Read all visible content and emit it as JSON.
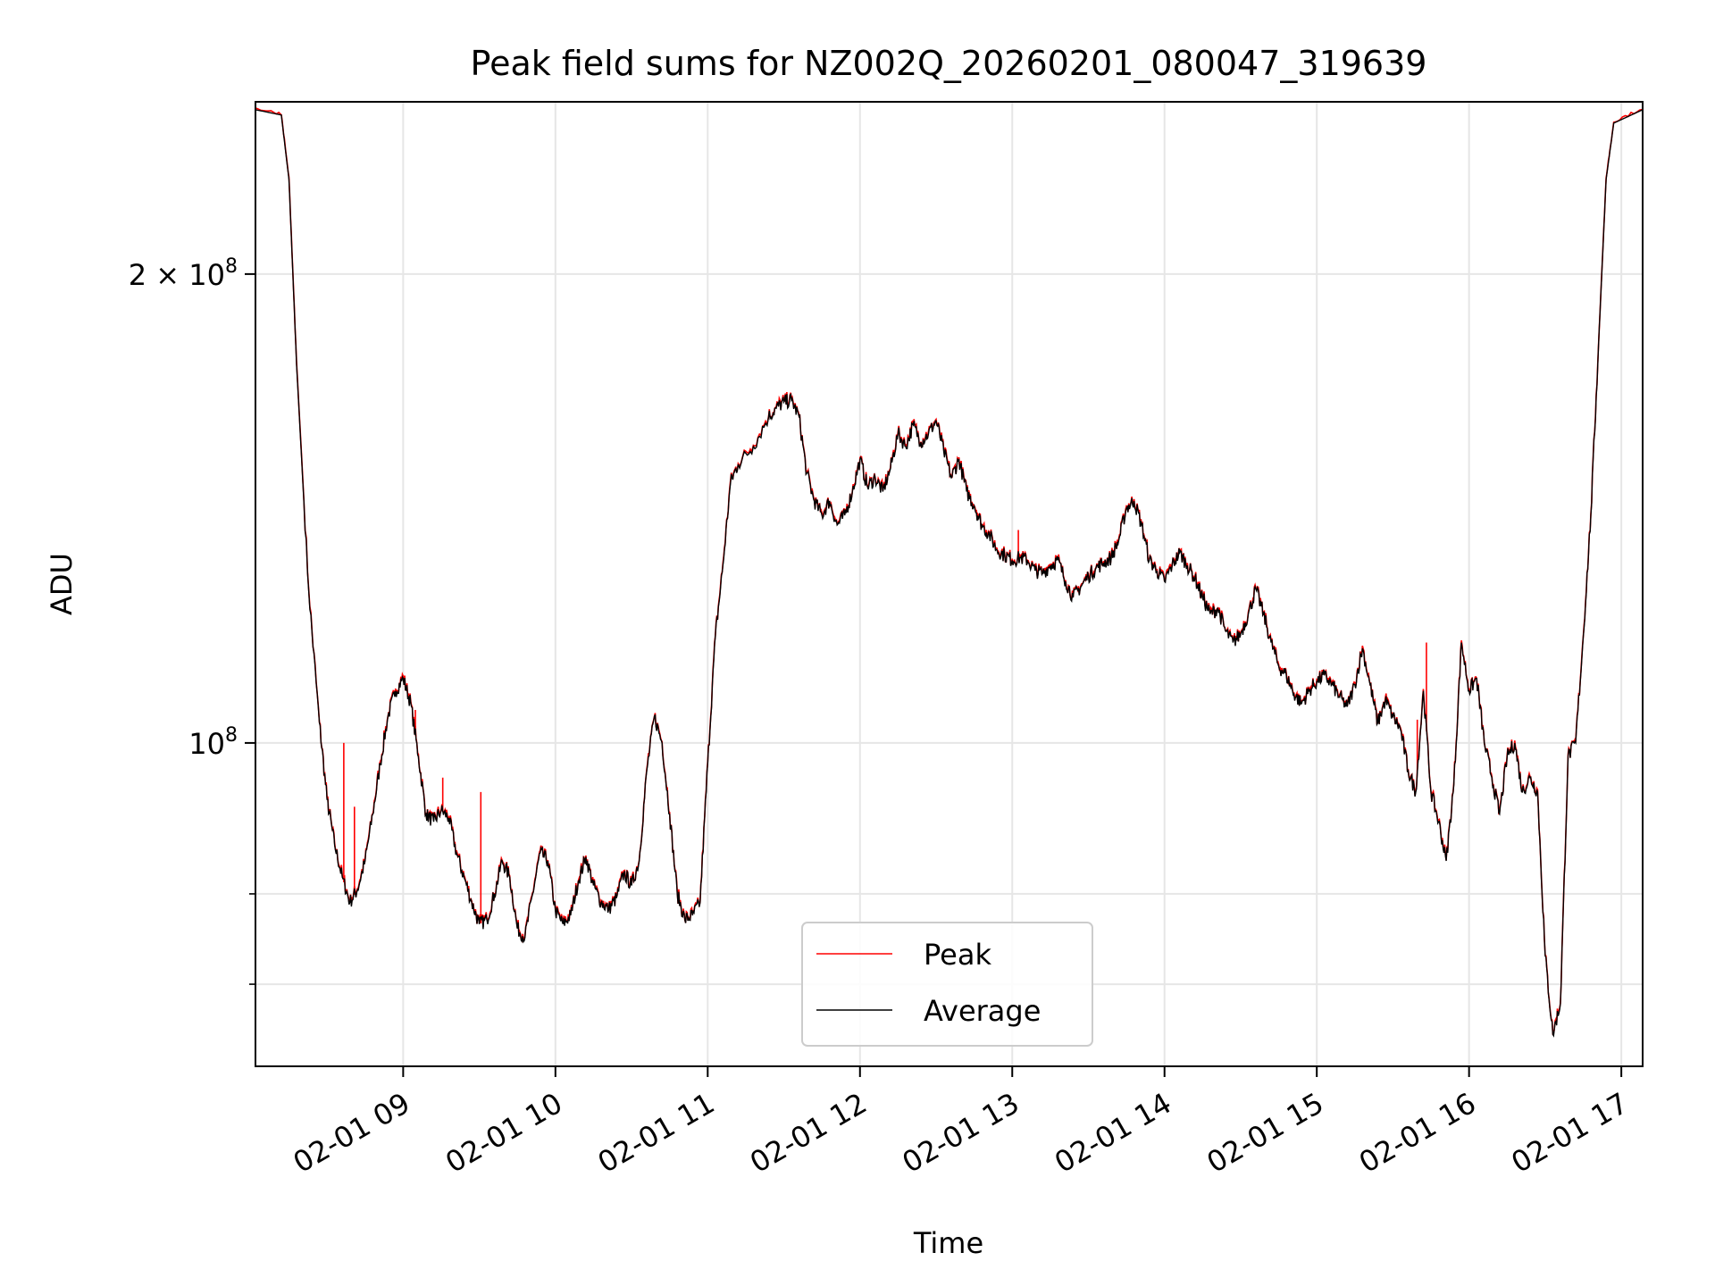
{
  "chart_data": {
    "type": "line",
    "title": "Peak field sums for NZ002Q_20260201_080047_319639",
    "xlabel": "Time",
    "ylabel": "ADU",
    "yscale": "log",
    "ylim": [
      62000000,
      258000000
    ],
    "xlim_hours": [
      8.03,
      17.14
    ],
    "grid": true,
    "x_ticks": [
      {
        "hour": 9,
        "label": "02-01 09"
      },
      {
        "hour": 10,
        "label": "02-01 10"
      },
      {
        "hour": 11,
        "label": "02-01 11"
      },
      {
        "hour": 12,
        "label": "02-01 12"
      },
      {
        "hour": 13,
        "label": "02-01 13"
      },
      {
        "hour": 14,
        "label": "02-01 14"
      },
      {
        "hour": 15,
        "label": "02-01 15"
      },
      {
        "hour": 16,
        "label": "02-01 16"
      },
      {
        "hour": 17,
        "label": "02-01 17"
      }
    ],
    "y_major_ticks": [
      {
        "value": 100000000,
        "mant": "10",
        "exp": "8"
      },
      {
        "value": 200000000,
        "mant": "2 × 10",
        "exp": "8"
      }
    ],
    "y_minor_ticks": [
      70000000,
      80000000,
      300000000
    ],
    "legend": {
      "position": "lower-center",
      "entries": [
        "Peak",
        "Average"
      ]
    },
    "colors": {
      "Peak": "#ff0000",
      "Average": "#000000",
      "grid": "#e6e6e6"
    },
    "series": [
      {
        "name": "Average",
        "color": "#000000",
        "points": [
          [
            8.03,
            255000000
          ],
          [
            8.2,
            253000000
          ],
          [
            8.25,
            230000000
          ],
          [
            8.3,
            175000000
          ],
          [
            8.38,
            125000000
          ],
          [
            8.45,
            103000000
          ],
          [
            8.5,
            92000000
          ],
          [
            8.55,
            86000000
          ],
          [
            8.6,
            82000000
          ],
          [
            8.65,
            79000000
          ],
          [
            8.7,
            80500000
          ],
          [
            8.75,
            84000000
          ],
          [
            8.8,
            90000000
          ],
          [
            8.85,
            97000000
          ],
          [
            8.9,
            104000000
          ],
          [
            8.95,
            108000000
          ],
          [
            9.0,
            110000000
          ],
          [
            9.05,
            106000000
          ],
          [
            9.1,
            98000000
          ],
          [
            9.15,
            90000000
          ],
          [
            9.2,
            89000000
          ],
          [
            9.25,
            90500000
          ],
          [
            9.3,
            89500000
          ],
          [
            9.35,
            85000000
          ],
          [
            9.4,
            82000000
          ],
          [
            9.45,
            79000000
          ],
          [
            9.5,
            76500000
          ],
          [
            9.55,
            77000000
          ],
          [
            9.6,
            80000000
          ],
          [
            9.65,
            84000000
          ],
          [
            9.7,
            82000000
          ],
          [
            9.75,
            76000000
          ],
          [
            9.8,
            75000000
          ],
          [
            9.85,
            80000000
          ],
          [
            9.9,
            85000000
          ],
          [
            9.95,
            84000000
          ],
          [
            10.0,
            78000000
          ],
          [
            10.05,
            76500000
          ],
          [
            10.1,
            77500000
          ],
          [
            10.15,
            81500000
          ],
          [
            10.2,
            84500000
          ],
          [
            10.25,
            81000000
          ],
          [
            10.3,
            79000000
          ],
          [
            10.35,
            78200000
          ],
          [
            10.4,
            79500000
          ],
          [
            10.45,
            82500000
          ],
          [
            10.5,
            81000000
          ],
          [
            10.55,
            84000000
          ],
          [
            10.6,
            96000000
          ],
          [
            10.65,
            104000000
          ],
          [
            10.7,
            100000000
          ],
          [
            10.75,
            90000000
          ],
          [
            10.8,
            80000000
          ],
          [
            10.85,
            77000000
          ],
          [
            10.9,
            77500000
          ],
          [
            10.95,
            79000000
          ],
          [
            11.0,
            97000000
          ],
          [
            11.05,
            117000000
          ],
          [
            11.1,
            130000000
          ],
          [
            11.15,
            147000000
          ],
          [
            11.2,
            151000000
          ],
          [
            11.3,
            155000000
          ],
          [
            11.4,
            162000000
          ],
          [
            11.45,
            164000000
          ],
          [
            11.5,
            165500000
          ],
          [
            11.55,
            166000000
          ],
          [
            11.6,
            162000000
          ],
          [
            11.65,
            149000000
          ],
          [
            11.7,
            143000000
          ],
          [
            11.75,
            140000000
          ],
          [
            11.8,
            143000000
          ],
          [
            11.85,
            138000000
          ],
          [
            11.9,
            140000000
          ],
          [
            11.95,
            145000000
          ],
          [
            12.0,
            152000000
          ],
          [
            12.05,
            146000000
          ],
          [
            12.1,
            148000000
          ],
          [
            12.15,
            145000000
          ],
          [
            12.2,
            150000000
          ],
          [
            12.25,
            158000000
          ],
          [
            12.3,
            155000000
          ],
          [
            12.35,
            160000000
          ],
          [
            12.4,
            156000000
          ],
          [
            12.45,
            158000000
          ],
          [
            12.5,
            161000000
          ],
          [
            12.55,
            154000000
          ],
          [
            12.6,
            148000000
          ],
          [
            12.65,
            152000000
          ],
          [
            12.7,
            145000000
          ],
          [
            12.75,
            142000000
          ],
          [
            12.8,
            138000000
          ],
          [
            12.85,
            136000000
          ],
          [
            12.9,
            133000000
          ],
          [
            12.95,
            132000000
          ],
          [
            13.0,
            131000000
          ],
          [
            13.05,
            131500000
          ],
          [
            13.1,
            131000000
          ],
          [
            13.15,
            129000000
          ],
          [
            13.2,
            128500000
          ],
          [
            13.25,
            130000000
          ],
          [
            13.3,
            131000000
          ],
          [
            13.35,
            127000000
          ],
          [
            13.4,
            124000000
          ],
          [
            13.45,
            126000000
          ],
          [
            13.5,
            128000000
          ],
          [
            13.55,
            129500000
          ],
          [
            13.6,
            130500000
          ],
          [
            13.65,
            131500000
          ],
          [
            13.7,
            135000000
          ],
          [
            13.75,
            141500000
          ],
          [
            13.8,
            143000000
          ],
          [
            13.85,
            138000000
          ],
          [
            13.9,
            131000000
          ],
          [
            13.95,
            129000000
          ],
          [
            14.0,
            127000000
          ],
          [
            14.05,
            130000000
          ],
          [
            14.1,
            132500000
          ],
          [
            14.15,
            130000000
          ],
          [
            14.2,
            127500000
          ],
          [
            14.25,
            124000000
          ],
          [
            14.3,
            121000000
          ],
          [
            14.35,
            122000000
          ],
          [
            14.4,
            118000000
          ],
          [
            14.45,
            116000000
          ],
          [
            14.5,
            117500000
          ],
          [
            14.55,
            121000000
          ],
          [
            14.6,
            125500000
          ],
          [
            14.65,
            121000000
          ],
          [
            14.7,
            116000000
          ],
          [
            14.75,
            112000000
          ],
          [
            14.8,
            110500000
          ],
          [
            14.85,
            107500000
          ],
          [
            14.9,
            106000000
          ],
          [
            14.95,
            108000000
          ],
          [
            15.0,
            109500000
          ],
          [
            15.05,
            110500000
          ],
          [
            15.1,
            109000000
          ],
          [
            15.15,
            107000000
          ],
          [
            15.2,
            105500000
          ],
          [
            15.25,
            109000000
          ],
          [
            15.3,
            115000000
          ],
          [
            15.35,
            109000000
          ],
          [
            15.4,
            103000000
          ],
          [
            15.45,
            106500000
          ],
          [
            15.5,
            104000000
          ],
          [
            15.55,
            102000000
          ],
          [
            15.6,
            96000000
          ],
          [
            15.65,
            93000000
          ],
          [
            15.7,
            108000000
          ],
          [
            15.75,
            93000000
          ],
          [
            15.8,
            89000000
          ],
          [
            15.85,
            84000000
          ],
          [
            15.9,
            94000000
          ],
          [
            15.95,
            116000000
          ],
          [
            16.0,
            108000000
          ],
          [
            16.05,
            110000000
          ],
          [
            16.1,
            100000000
          ],
          [
            16.15,
            95000000
          ],
          [
            16.2,
            90000000
          ],
          [
            16.25,
            98000000
          ],
          [
            16.3,
            100000000
          ],
          [
            16.35,
            93000000
          ],
          [
            16.4,
            95000000
          ],
          [
            16.45,
            93000000
          ],
          [
            16.5,
            73000000
          ],
          [
            16.55,
            65000000
          ],
          [
            16.6,
            68000000
          ],
          [
            16.65,
            98000000
          ],
          [
            16.7,
            100000000
          ],
          [
            16.75,
            117000000
          ],
          [
            16.8,
            140000000
          ],
          [
            16.85,
            180000000
          ],
          [
            16.9,
            230000000
          ],
          [
            16.95,
            250000000
          ],
          [
            17.14,
            255000000
          ]
        ]
      },
      {
        "name": "Peak",
        "color": "#ff0000",
        "spikes": [
          [
            8.61,
            100000000
          ],
          [
            8.68,
            91000000
          ],
          [
            9.08,
            105000000
          ],
          [
            9.26,
            95000000
          ],
          [
            9.51,
            93000000
          ],
          [
            13.04,
            137000000
          ],
          [
            15.66,
            103500000
          ],
          [
            15.72,
            116000000
          ]
        ]
      }
    ]
  }
}
